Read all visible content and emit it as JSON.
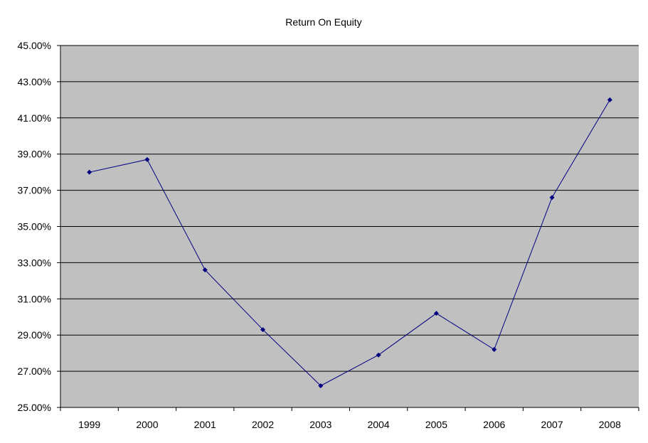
{
  "chart_data": {
    "type": "line",
    "title": "Return On Equity",
    "xlabel": "",
    "ylabel": "",
    "categories": [
      "1999",
      "2000",
      "2001",
      "2002",
      "2003",
      "2004",
      "2005",
      "2006",
      "2007",
      "2008"
    ],
    "series": [
      {
        "values": [
          38.0,
          38.7,
          32.6,
          29.3,
          26.2,
          27.9,
          30.2,
          28.2,
          36.6,
          42.0
        ]
      }
    ],
    "ylim": [
      25,
      45
    ],
    "ytick_step": 2,
    "ytick_labels": [
      "25.00%",
      "27.00%",
      "29.00%",
      "31.00%",
      "33.00%",
      "35.00%",
      "37.00%",
      "39.00%",
      "41.00%",
      "43.00%",
      "45.00%"
    ],
    "grid": true,
    "legend": "none",
    "colors": {
      "plot_background": "#c0c0c0",
      "line": "#000080",
      "gridline": "#000000"
    }
  }
}
